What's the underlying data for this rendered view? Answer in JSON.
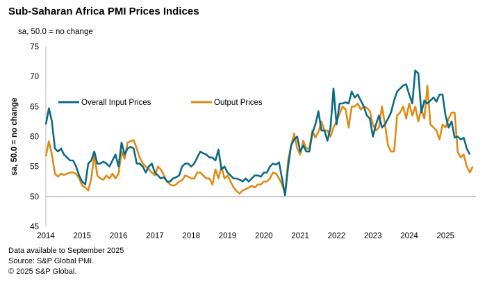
{
  "title": "Sub-Saharan Africa PMI Prices Indices",
  "subtitle": "sa, 50.0 = no change",
  "footer": [
    "Data available to September 2025",
    "Source: S&P Global PMI.",
    "© 2025 S&P Global."
  ],
  "chart_data": {
    "type": "line",
    "title": "Sub-Saharan Africa PMI Prices Indices",
    "ylabel": "sa, 50.0 = no change",
    "xlabel": "",
    "ylim": [
      45,
      75
    ],
    "yticks": [
      "45",
      "50",
      "55",
      "60",
      "65",
      "70",
      "75"
    ],
    "xticks": [
      "2014",
      "2015",
      "2016",
      "2017",
      "2018",
      "2019",
      "2020",
      "2021",
      "2022",
      "2023",
      "2024",
      "2025"
    ],
    "start": "2014-01",
    "frequency": "monthly",
    "baseline": 50,
    "legend_position": "top-left inside",
    "series": [
      {
        "name": "Overall Input Prices",
        "color": "#0b6a85",
        "values": [
          62,
          64.7,
          62.5,
          58,
          57.5,
          58,
          57,
          56.5,
          56,
          56,
          55,
          53.5,
          52.5,
          52,
          55.5,
          56,
          57.5,
          55.5,
          55.5,
          55.8,
          55.5,
          55,
          56,
          57,
          55,
          59,
          57,
          58,
          58.3,
          58,
          55.5,
          55.5,
          55,
          54,
          55,
          55.5,
          54,
          53.5,
          53,
          53.2,
          52.5,
          52.5,
          53,
          53.2,
          53.5,
          55,
          55.5,
          55.5,
          55,
          55.5,
          56.5,
          57.5,
          57.2,
          57,
          56.5,
          56.5,
          56,
          57.8,
          54.5,
          55,
          54,
          53.5,
          53,
          53,
          52.8,
          52.5,
          53,
          52.5,
          53,
          53.5,
          53.5,
          53.3,
          54,
          54,
          55,
          55.5,
          55.3,
          55.7,
          53,
          50.2,
          55,
          58.5,
          59.5,
          60,
          57.5,
          58.5,
          57.5,
          57.5,
          60.5,
          62,
          64.2,
          61,
          61,
          59.3,
          61.5,
          68,
          62,
          65.5,
          65.5,
          65.7,
          65.5,
          67.5,
          66.5,
          67,
          66,
          65,
          63.5,
          63,
          60,
          62,
          63.5,
          61.5,
          62,
          63,
          64,
          66,
          67.5,
          68,
          68.5,
          68.7,
          67,
          65.5,
          71,
          70.5,
          64,
          66,
          65.5,
          66,
          66.5,
          65.8,
          67,
          67,
          63.5,
          61.5,
          62.5,
          59.8,
          60,
          59.5,
          59.8,
          58,
          57
        ]
      },
      {
        "name": "Output Prices",
        "color": "#e08a12",
        "values": [
          56.7,
          59.2,
          57,
          53.8,
          53.3,
          53.8,
          53.6,
          53.8,
          54,
          54,
          53.8,
          53,
          51.8,
          51.5,
          51,
          53,
          57,
          53.5,
          53,
          52.8,
          53.5,
          53,
          53.8,
          53,
          53.8,
          57.5,
          56.3,
          59,
          59.2,
          59.4,
          58,
          56.5,
          55.5,
          55,
          54.5,
          54,
          53.5,
          55,
          54.5,
          53.5,
          52.5,
          52,
          51.8,
          52,
          52.5,
          52.7,
          53.5,
          53.3,
          53,
          53,
          54,
          54,
          53.5,
          53,
          53,
          52,
          54.5,
          53,
          55,
          53,
          53.5,
          52.5,
          51.5,
          50.9,
          50.5,
          51,
          51.2,
          51.5,
          51.8,
          51.5,
          52,
          52,
          52.5,
          52.5,
          53,
          54,
          53.8,
          53,
          52,
          50.5,
          56,
          58.5,
          60.5,
          58,
          57,
          59.3,
          58,
          58,
          61,
          59.8,
          60.8,
          62.5,
          61,
          61,
          60,
          61.5,
          62.5,
          63.8,
          65,
          64.5,
          61.5,
          65,
          65,
          65.5,
          64.5,
          65,
          64.8,
          64.2,
          62,
          61,
          61.5,
          65,
          62,
          58.5,
          57.5,
          57.5,
          63.5,
          64,
          65,
          63,
          65.5,
          63.5,
          65,
          62.5,
          64.5,
          63,
          68.5,
          62,
          61.5,
          61,
          59.5,
          62,
          61.5,
          63,
          64,
          64,
          57.5,
          56.5,
          57,
          55,
          54,
          55
        ]
      }
    ]
  }
}
